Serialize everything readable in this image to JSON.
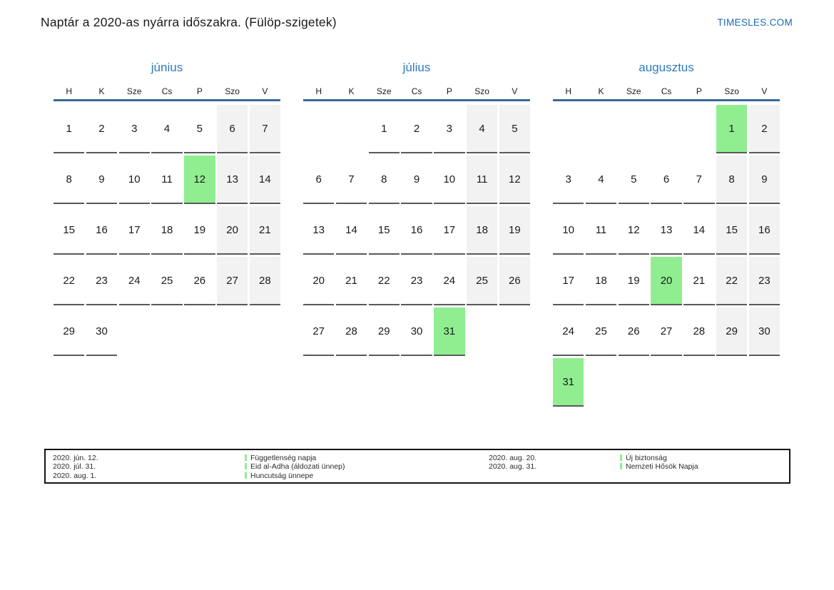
{
  "page": {
    "title": "Naptár a 2020-as nyárra időszakra. (Fülöp-szigetek)",
    "brand": "TIMESLES.COM"
  },
  "weekday_headers": [
    "H",
    "K",
    "Sze",
    "Cs",
    "P",
    "Szo",
    "V"
  ],
  "months": [
    {
      "name": "június",
      "highlights": [
        12
      ],
      "weeks": [
        [
          "1",
          "2",
          "3",
          "4",
          "5",
          "6",
          "7"
        ],
        [
          "8",
          "9",
          "10",
          "11",
          "12",
          "13",
          "14"
        ],
        [
          "15",
          "16",
          "17",
          "18",
          "19",
          "20",
          "21"
        ],
        [
          "22",
          "23",
          "24",
          "25",
          "26",
          "27",
          "28"
        ],
        [
          "29",
          "30",
          "",
          "",
          "",
          "",
          ""
        ]
      ]
    },
    {
      "name": "július",
      "highlights": [
        31
      ],
      "weeks": [
        [
          "",
          "",
          "1",
          "2",
          "3",
          "4",
          "5"
        ],
        [
          "6",
          "7",
          "8",
          "9",
          "10",
          "11",
          "12"
        ],
        [
          "13",
          "14",
          "15",
          "16",
          "17",
          "18",
          "19"
        ],
        [
          "20",
          "21",
          "22",
          "23",
          "24",
          "25",
          "26"
        ],
        [
          "27",
          "28",
          "29",
          "30",
          "31",
          "",
          ""
        ]
      ]
    },
    {
      "name": "augusztus",
      "highlights": [
        1,
        20,
        31
      ],
      "weeks": [
        [
          "",
          "",
          "",
          "",
          "",
          "1",
          "2"
        ],
        [
          "3",
          "4",
          "5",
          "6",
          "7",
          "8",
          "9"
        ],
        [
          "10",
          "11",
          "12",
          "13",
          "14",
          "15",
          "16"
        ],
        [
          "17",
          "18",
          "19",
          "20",
          "21",
          "22",
          "23"
        ],
        [
          "24",
          "25",
          "26",
          "27",
          "28",
          "29",
          "30"
        ],
        [
          "31",
          "",
          "",
          "",
          "",
          "",
          ""
        ]
      ]
    }
  ],
  "legend": {
    "entries": [
      {
        "date": "2020. jún. 12.",
        "name": "Függetlenség napja"
      },
      {
        "date": "2020. júl. 31.",
        "name": "Eid al-Adha (áldozati ünnep)"
      },
      {
        "date": "2020. aug. 1.",
        "name": "Huncutság ünnepe"
      },
      {
        "date": "2020. aug. 20.",
        "name": "Új biztonság"
      },
      {
        "date": "2020. aug. 31.",
        "name": "Nemzeti Hősök Napja"
      }
    ]
  },
  "colors": {
    "highlight_green": "#90ee90",
    "weekend_gray": "#f2f2f2",
    "accent_blue": "#2e7bbf",
    "brand_blue": "#1969b3",
    "header_line_blue": "#38699b",
    "cell_underline_gray": "#58595b"
  }
}
